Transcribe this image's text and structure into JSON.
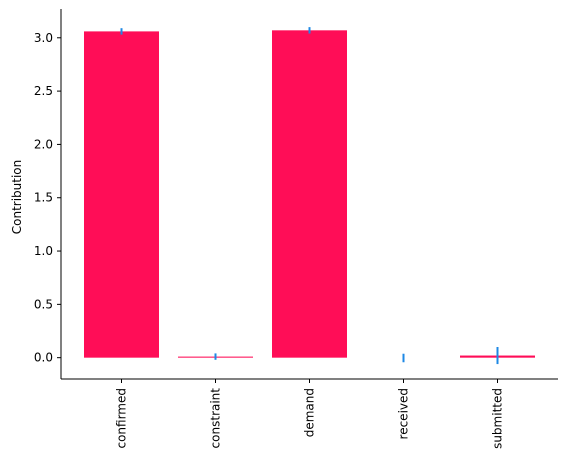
{
  "chart_data": {
    "type": "bar",
    "title": "",
    "xlabel": "",
    "ylabel": "Contribution",
    "categories": [
      "confirmed",
      "constraint",
      "demand",
      "received",
      "submitted"
    ],
    "values": [
      3.06,
      0.01,
      3.07,
      -0.003,
      0.02
    ],
    "error": [
      0.03,
      0.03,
      0.03,
      0.04,
      0.08
    ],
    "ylim": [
      -0.2,
      3.27
    ],
    "yticks": [
      0.0,
      0.5,
      1.0,
      1.5,
      2.0,
      2.5,
      3.0
    ],
    "ytick_labels": [
      "0.0",
      "0.5",
      "1.0",
      "1.5",
      "2.0",
      "2.5",
      "3.0"
    ],
    "grid": false,
    "legend": "none",
    "colors": {
      "bar": "#ff0d57",
      "error": "#1e88e5",
      "axis": "#000000"
    }
  }
}
